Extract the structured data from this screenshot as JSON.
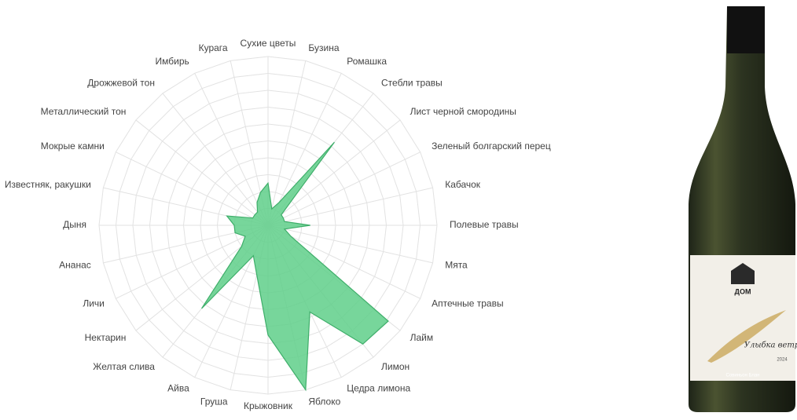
{
  "chart_data": {
    "type": "radar",
    "categories": [
      "Сухие цветы",
      "Бузина",
      "Ромашка",
      "Стебли травы",
      "Лист черной смородины",
      "Зеленый болгарский перец",
      "Кабачок",
      "Полевые травы",
      "Мята",
      "Аптечные травы",
      "Лайм",
      "Лимон",
      "Цедра лимона",
      "Яблоко",
      "Крыжовник",
      "Груша",
      "Айва",
      "Желтая слива",
      "Нектарин",
      "Личи",
      "Ананас",
      "Дыня",
      "Известняк, ракушки",
      "Мокрые камни",
      "Металлический тон",
      "Дрожжевой тон",
      "Имбирь",
      "Курага"
    ],
    "values": [
      2.5,
      1,
      1.5,
      6.3,
      1,
      1,
      1,
      2.5,
      1,
      1.5,
      9.1,
      9,
      5.7,
      10,
      6.5,
      3,
      2,
      6.3,
      2,
      1.5,
      2,
      2,
      2.5,
      1,
      1,
      1,
      1.5,
      2
    ],
    "color": "#5fcf8a",
    "line_color": "#3fae6a",
    "ylim": [
      0,
      10
    ],
    "yticks": [
      1,
      2,
      3,
      4,
      5,
      6,
      7,
      8,
      9,
      10
    ],
    "grid": true
  },
  "bottle_label": {
    "brand": "ДОМ",
    "name": "Улыбка ветра",
    "year": "2024",
    "variety": "Совиньон Блан"
  }
}
